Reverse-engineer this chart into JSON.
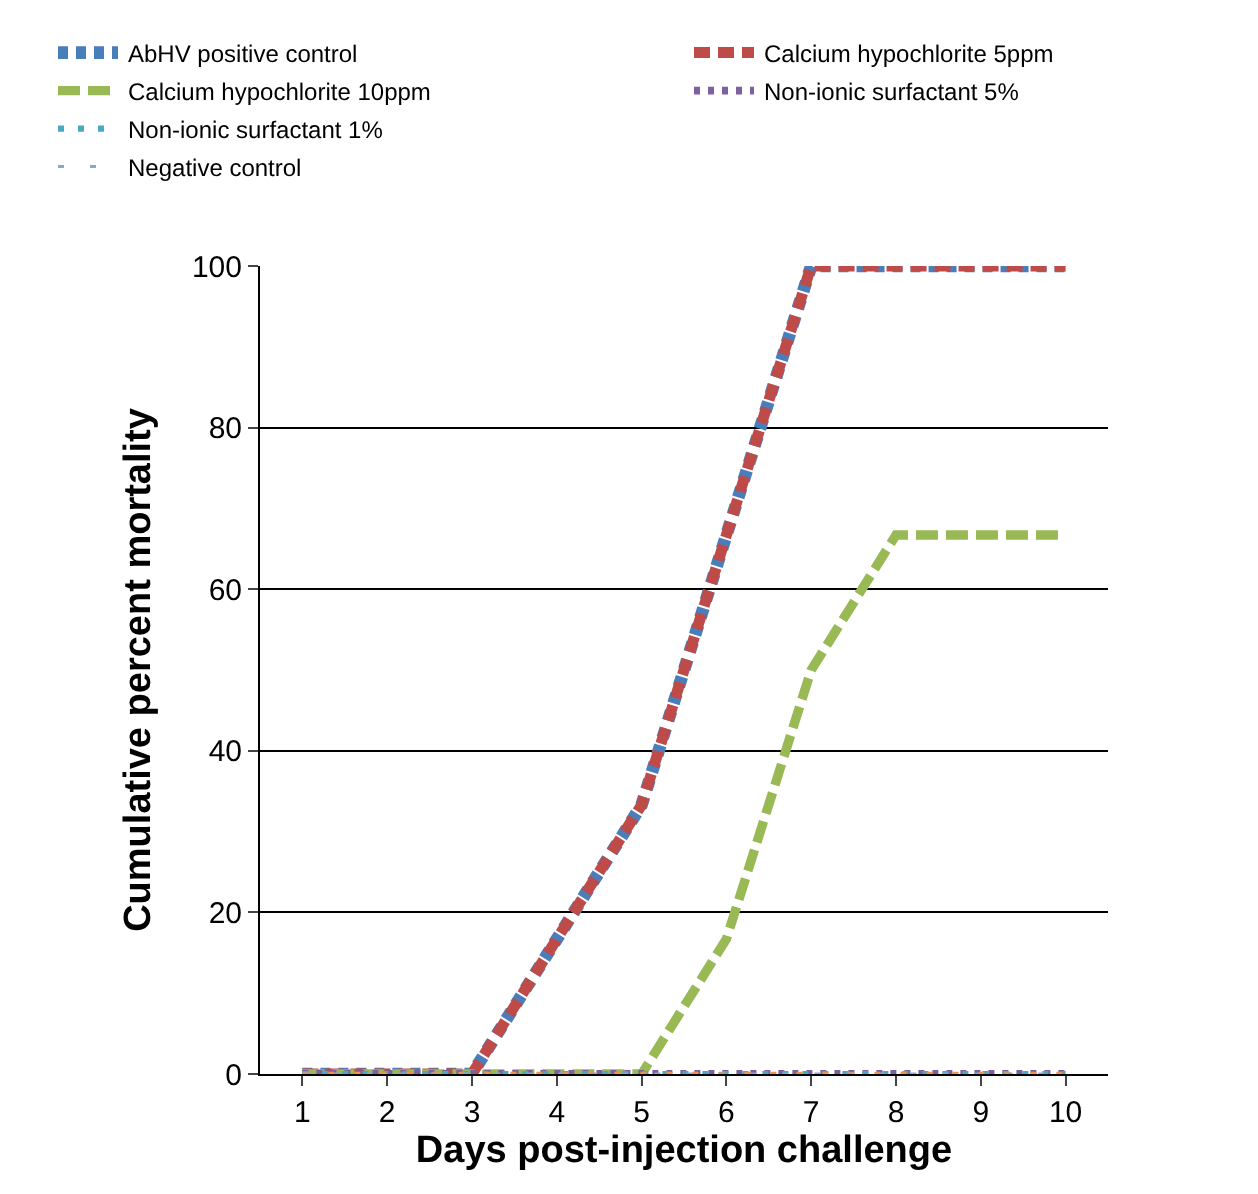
{
  "chart_data": {
    "type": "line",
    "xlabel": "Days post-injection challenge",
    "ylabel": "Cumulative percent mortality",
    "x": [
      1,
      2,
      3,
      4,
      5,
      6,
      7,
      8,
      9,
      10
    ],
    "xlim": [
      0.5,
      10.5
    ],
    "xticks": [
      1,
      2,
      3,
      4,
      5,
      6,
      7,
      8,
      9,
      10
    ],
    "ylim": [
      0,
      100
    ],
    "yticks": [
      0,
      20,
      40,
      60,
      80,
      100
    ],
    "grid": "y",
    "legend": "top",
    "marker": "none",
    "series": [
      {
        "name": "AbHV positive control",
        "color": "#4a7ebb",
        "line_style": "dashed",
        "values": [
          0,
          0,
          0,
          16.7,
          33.3,
          66.7,
          100,
          100,
          100,
          100
        ]
      },
      {
        "name": "Calcium hypochlorite 5ppm",
        "color": "#be4b48",
        "line_style": "dashed",
        "values": [
          0,
          0,
          0,
          16.7,
          33.3,
          66.7,
          100,
          100,
          100,
          100
        ]
      },
      {
        "name": "Calcium hypochlorite 10ppm",
        "color": "#98b954",
        "line_style": "dashed",
        "values": [
          0,
          0,
          0,
          0,
          0,
          16.7,
          50,
          66.7,
          66.7,
          66.7
        ]
      },
      {
        "name": "Non-ionic surfactant 5%",
        "color": "#7d60a0",
        "line_style": "dotted",
        "values": [
          0,
          0,
          0,
          0,
          0,
          0,
          0,
          0,
          0,
          0
        ]
      },
      {
        "name": "Non-ionic surfactant 1%",
        "color": "#46aac5",
        "line_style": "dotted",
        "values": [
          0,
          0,
          0,
          0,
          0,
          0,
          0,
          0,
          0,
          0
        ]
      },
      {
        "color": "#f69240",
        "line_style": "dotted",
        "values": [
          0,
          0,
          0,
          0,
          0,
          0,
          0,
          0,
          0,
          0
        ]
      },
      {
        "name": "Negative control",
        "color": "#8ea5cb",
        "line_style": "dotted",
        "values": [
          0,
          0,
          0,
          0,
          0,
          0,
          0,
          0,
          0,
          0
        ]
      }
    ]
  }
}
